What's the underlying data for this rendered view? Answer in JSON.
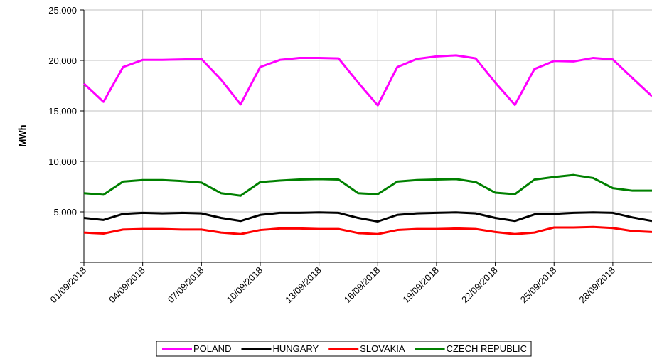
{
  "chart_data": {
    "type": "line",
    "y_label": "MWh",
    "categories": [
      "01/09/2018",
      null,
      null,
      "04/09/2018",
      null,
      null,
      "07/09/2018",
      null,
      null,
      "10/09/2018",
      null,
      null,
      "13/09/2018",
      null,
      null,
      "16/09/2018",
      null,
      null,
      "19/09/2018",
      null,
      null,
      "22/09/2018",
      null,
      null,
      "25/09/2018",
      null,
      null,
      "28/09/2018",
      null,
      null
    ],
    "series": [
      {
        "name": "POLAND",
        "color": "#ff00ff",
        "values": [
          17700,
          15900,
          19350,
          20050,
          20050,
          20100,
          20150,
          18100,
          15650,
          19350,
          20050,
          20250,
          20250,
          20200,
          17800,
          15550,
          19350,
          20150,
          20400,
          20500,
          20200,
          17800,
          15600,
          19150,
          19950,
          19900,
          20250,
          20100,
          18250,
          16450
        ]
      },
      {
        "name": "HUNGARY",
        "color": "#000000",
        "values": [
          4400,
          4200,
          4800,
          4900,
          4850,
          4900,
          4850,
          4400,
          4100,
          4700,
          4900,
          4900,
          4950,
          4900,
          4400,
          4050,
          4700,
          4850,
          4900,
          4950,
          4850,
          4400,
          4100,
          4750,
          4800,
          4900,
          4950,
          4900,
          4450,
          4100
        ]
      },
      {
        "name": "SLOVAKIA",
        "color": "#ff0000",
        "values": [
          2950,
          2850,
          3250,
          3300,
          3300,
          3250,
          3250,
          2950,
          2800,
          3200,
          3350,
          3350,
          3300,
          3300,
          2900,
          2800,
          3200,
          3300,
          3300,
          3350,
          3300,
          3000,
          2800,
          2950,
          3450,
          3450,
          3500,
          3400,
          3100,
          3000
        ]
      },
      {
        "name": "CZECH REPUBLIC",
        "color": "#008000",
        "values": [
          6850,
          6700,
          8000,
          8150,
          8150,
          8050,
          7900,
          6850,
          6600,
          7950,
          8100,
          8200,
          8250,
          8200,
          6850,
          6750,
          8000,
          8150,
          8200,
          8250,
          7950,
          6900,
          6750,
          8200,
          8450,
          8650,
          8350,
          7350,
          7100,
          7100
        ]
      }
    ],
    "ylim": [
      0,
      25000
    ],
    "yticks": [
      {
        "value": 5000,
        "label": "5,000"
      },
      {
        "value": 10000,
        "label": "10,000"
      },
      {
        "value": 15000,
        "label": "15,000"
      },
      {
        "value": 20000,
        "label": "20,000"
      },
      {
        "value": 25000,
        "label": "25,000"
      }
    ],
    "grid": true,
    "legend": "bottom"
  }
}
